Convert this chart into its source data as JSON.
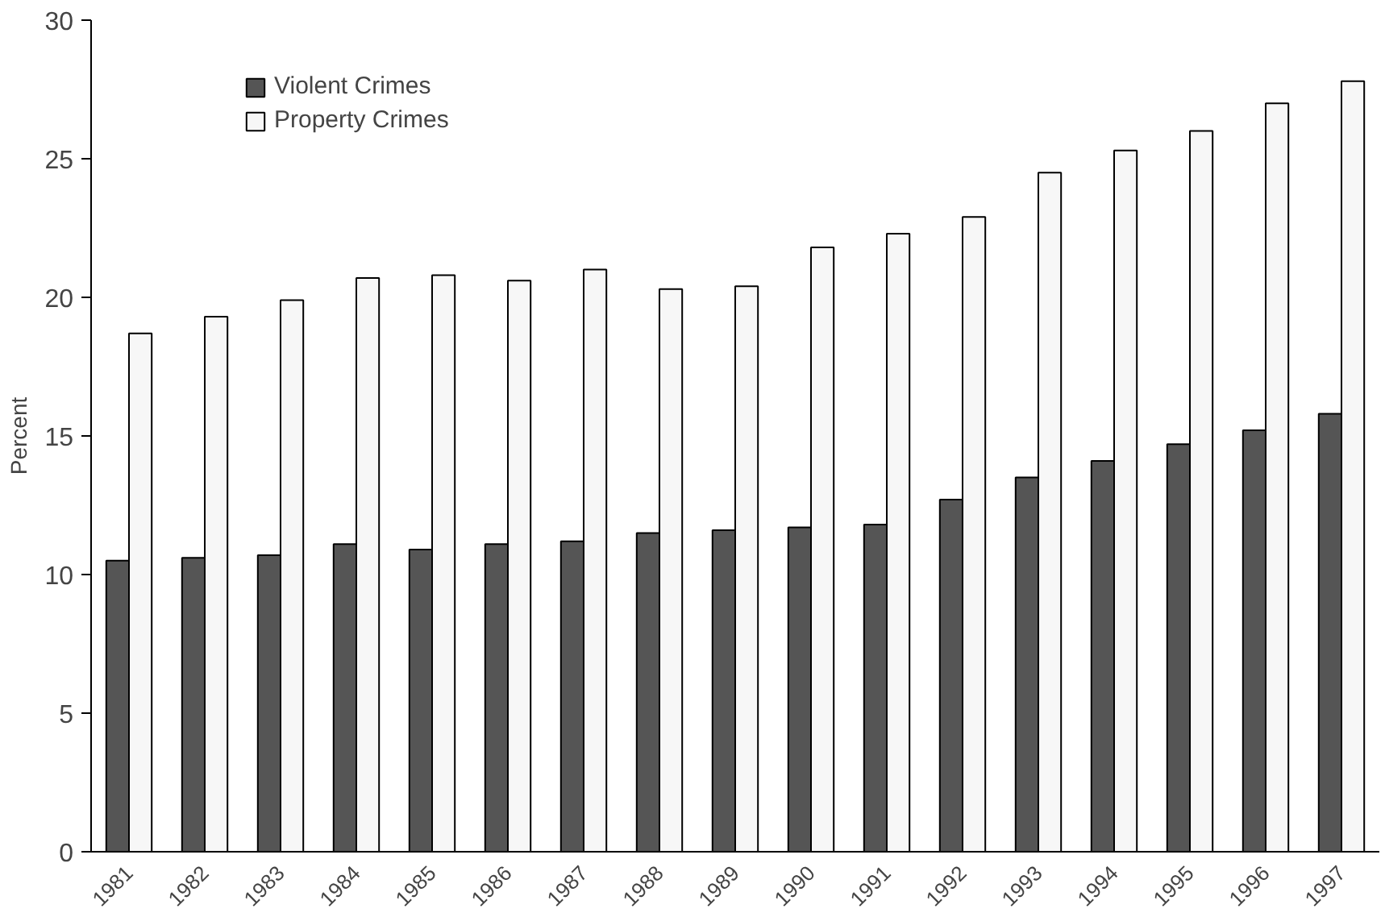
{
  "chart_data": {
    "type": "bar",
    "ylabel": "Percent",
    "categories": [
      "1981",
      "1982",
      "1983",
      "1984",
      "1985",
      "1986",
      "1987",
      "1988",
      "1989",
      "1990",
      "1991",
      "1992",
      "1993",
      "1994",
      "1995",
      "1996",
      "1997"
    ],
    "series": [
      {
        "name": "Violent Crimes",
        "color": "#555555",
        "values": [
          10.5,
          10.6,
          10.7,
          11.1,
          10.9,
          11.1,
          11.2,
          11.5,
          11.6,
          11.7,
          11.8,
          12.7,
          13.5,
          14.1,
          14.7,
          15.2,
          15.8
        ]
      },
      {
        "name": "Property Crimes",
        "color": "#f7f7f7",
        "values": [
          18.7,
          19.3,
          19.9,
          20.7,
          20.8,
          20.6,
          21.0,
          20.3,
          20.4,
          21.8,
          22.3,
          22.9,
          24.5,
          25.3,
          26.0,
          27.0,
          27.8
        ]
      }
    ],
    "ylim": [
      0,
      30
    ],
    "yticks": [
      0,
      5,
      10,
      15,
      20,
      25,
      30
    ],
    "grid": false,
    "legend": "top left"
  }
}
